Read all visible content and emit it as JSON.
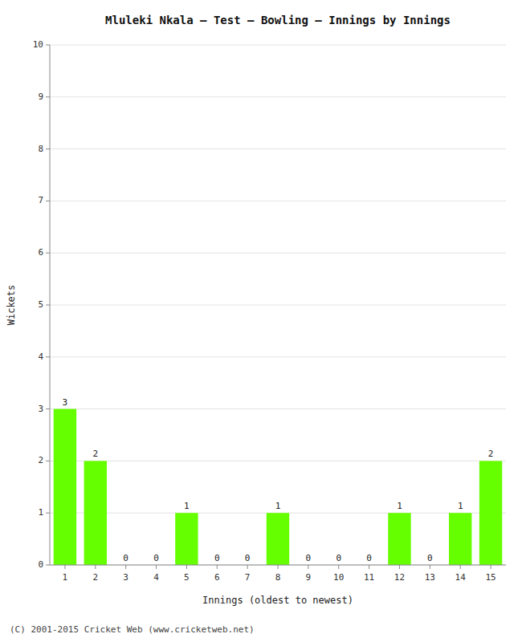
{
  "chart_data": {
    "type": "bar",
    "title": "Mluleki Nkala – Test – Bowling – Innings by Innings",
    "xlabel": "Innings (oldest to newest)",
    "ylabel": "Wickets",
    "categories": [
      1,
      2,
      3,
      4,
      5,
      6,
      7,
      8,
      9,
      10,
      11,
      12,
      13,
      14,
      15
    ],
    "values": [
      3,
      2,
      0,
      0,
      1,
      0,
      0,
      1,
      0,
      0,
      0,
      1,
      0,
      1,
      2
    ],
    "color": "#66ff00",
    "ylim": [
      0,
      10
    ],
    "yticks": [
      0,
      1,
      2,
      3,
      4,
      5,
      6,
      7,
      8,
      9,
      10
    ],
    "grid": true,
    "data_labels": true,
    "footer": "(C) 2001-2015 Cricket Web (www.cricketweb.net)"
  }
}
